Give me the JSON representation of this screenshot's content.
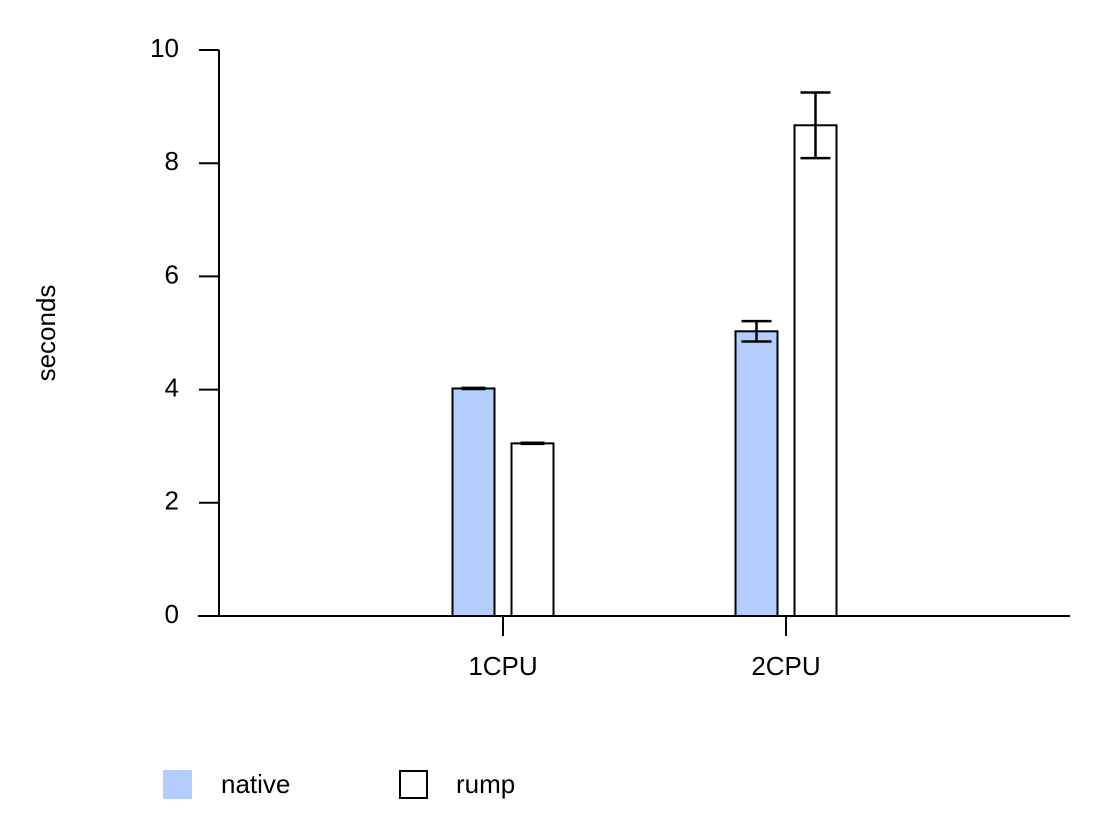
{
  "chart_data": {
    "type": "bar",
    "categories": [
      "1CPU",
      "2CPU"
    ],
    "ylabel": "seconds",
    "ylim": [
      0,
      10
    ],
    "yticks": [
      0,
      2,
      4,
      6,
      8,
      10
    ],
    "grid": false,
    "legend_placement": "bottom-left",
    "series": [
      {
        "name": "native",
        "color": "#b3cdff",
        "values": [
          4.02,
          5.03
        ],
        "errors": [
          0.01,
          0.18
        ]
      },
      {
        "name": "rump",
        "color": "#ffffff",
        "values": [
          3.05,
          8.67
        ],
        "errors": [
          0.01,
          0.58
        ]
      }
    ]
  }
}
